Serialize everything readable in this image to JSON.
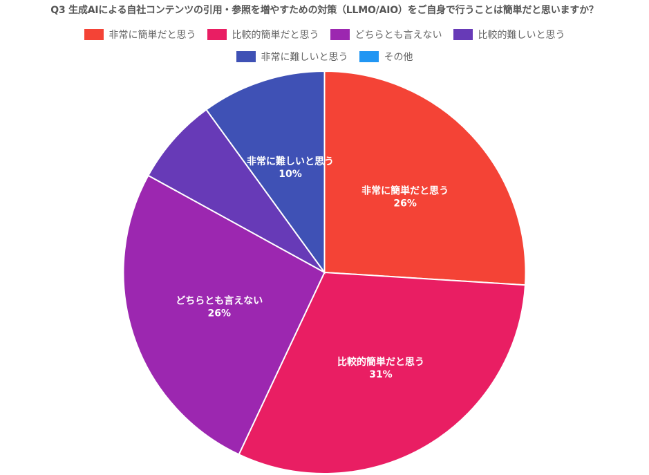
{
  "chart_data": {
    "type": "pie",
    "title": "Q3 生成AIによる自社コンテンツの引用・参照を増やすための対策（LLMO/AIO）をご自身で行うことは簡単だと思いますか？",
    "categories": [
      "非常に簡単だと思う",
      "比較的簡単だと思う",
      "どちらとも言えない",
      "比較的難しいと思う",
      "非常に難しいと思う",
      "その他"
    ],
    "values": [
      26,
      31,
      26,
      7,
      10,
      0
    ],
    "labels": [
      "26%",
      "31%",
      "26%",
      "",
      "10%",
      ""
    ],
    "colors": [
      "#F44336",
      "#E91E63",
      "#9C27B0",
      "#673AB7",
      "#3F51B5",
      "#2196F3"
    ],
    "legend_position": "top"
  }
}
